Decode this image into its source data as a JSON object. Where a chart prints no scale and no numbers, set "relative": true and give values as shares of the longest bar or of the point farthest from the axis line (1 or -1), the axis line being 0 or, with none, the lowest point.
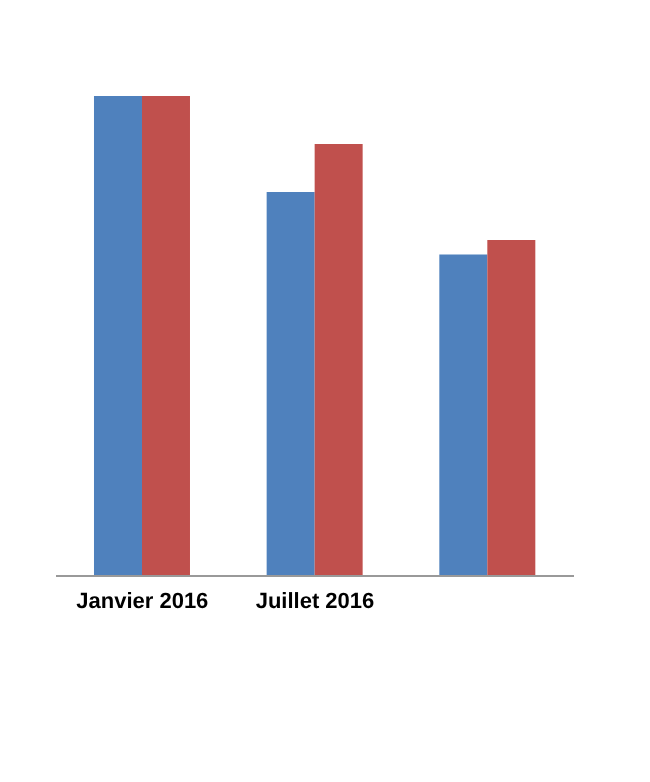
{
  "chart_data": {
    "type": "bar",
    "relative": true,
    "categories": [
      "Janvier 2016",
      "Juillet 2016",
      null
    ],
    "series": [
      {
        "color": "#4f81bd",
        "values": [
          1,
          0.8,
          0.67
        ]
      },
      {
        "color": "#c0504d",
        "values": [
          1,
          0.9,
          0.7
        ]
      }
    ]
  }
}
